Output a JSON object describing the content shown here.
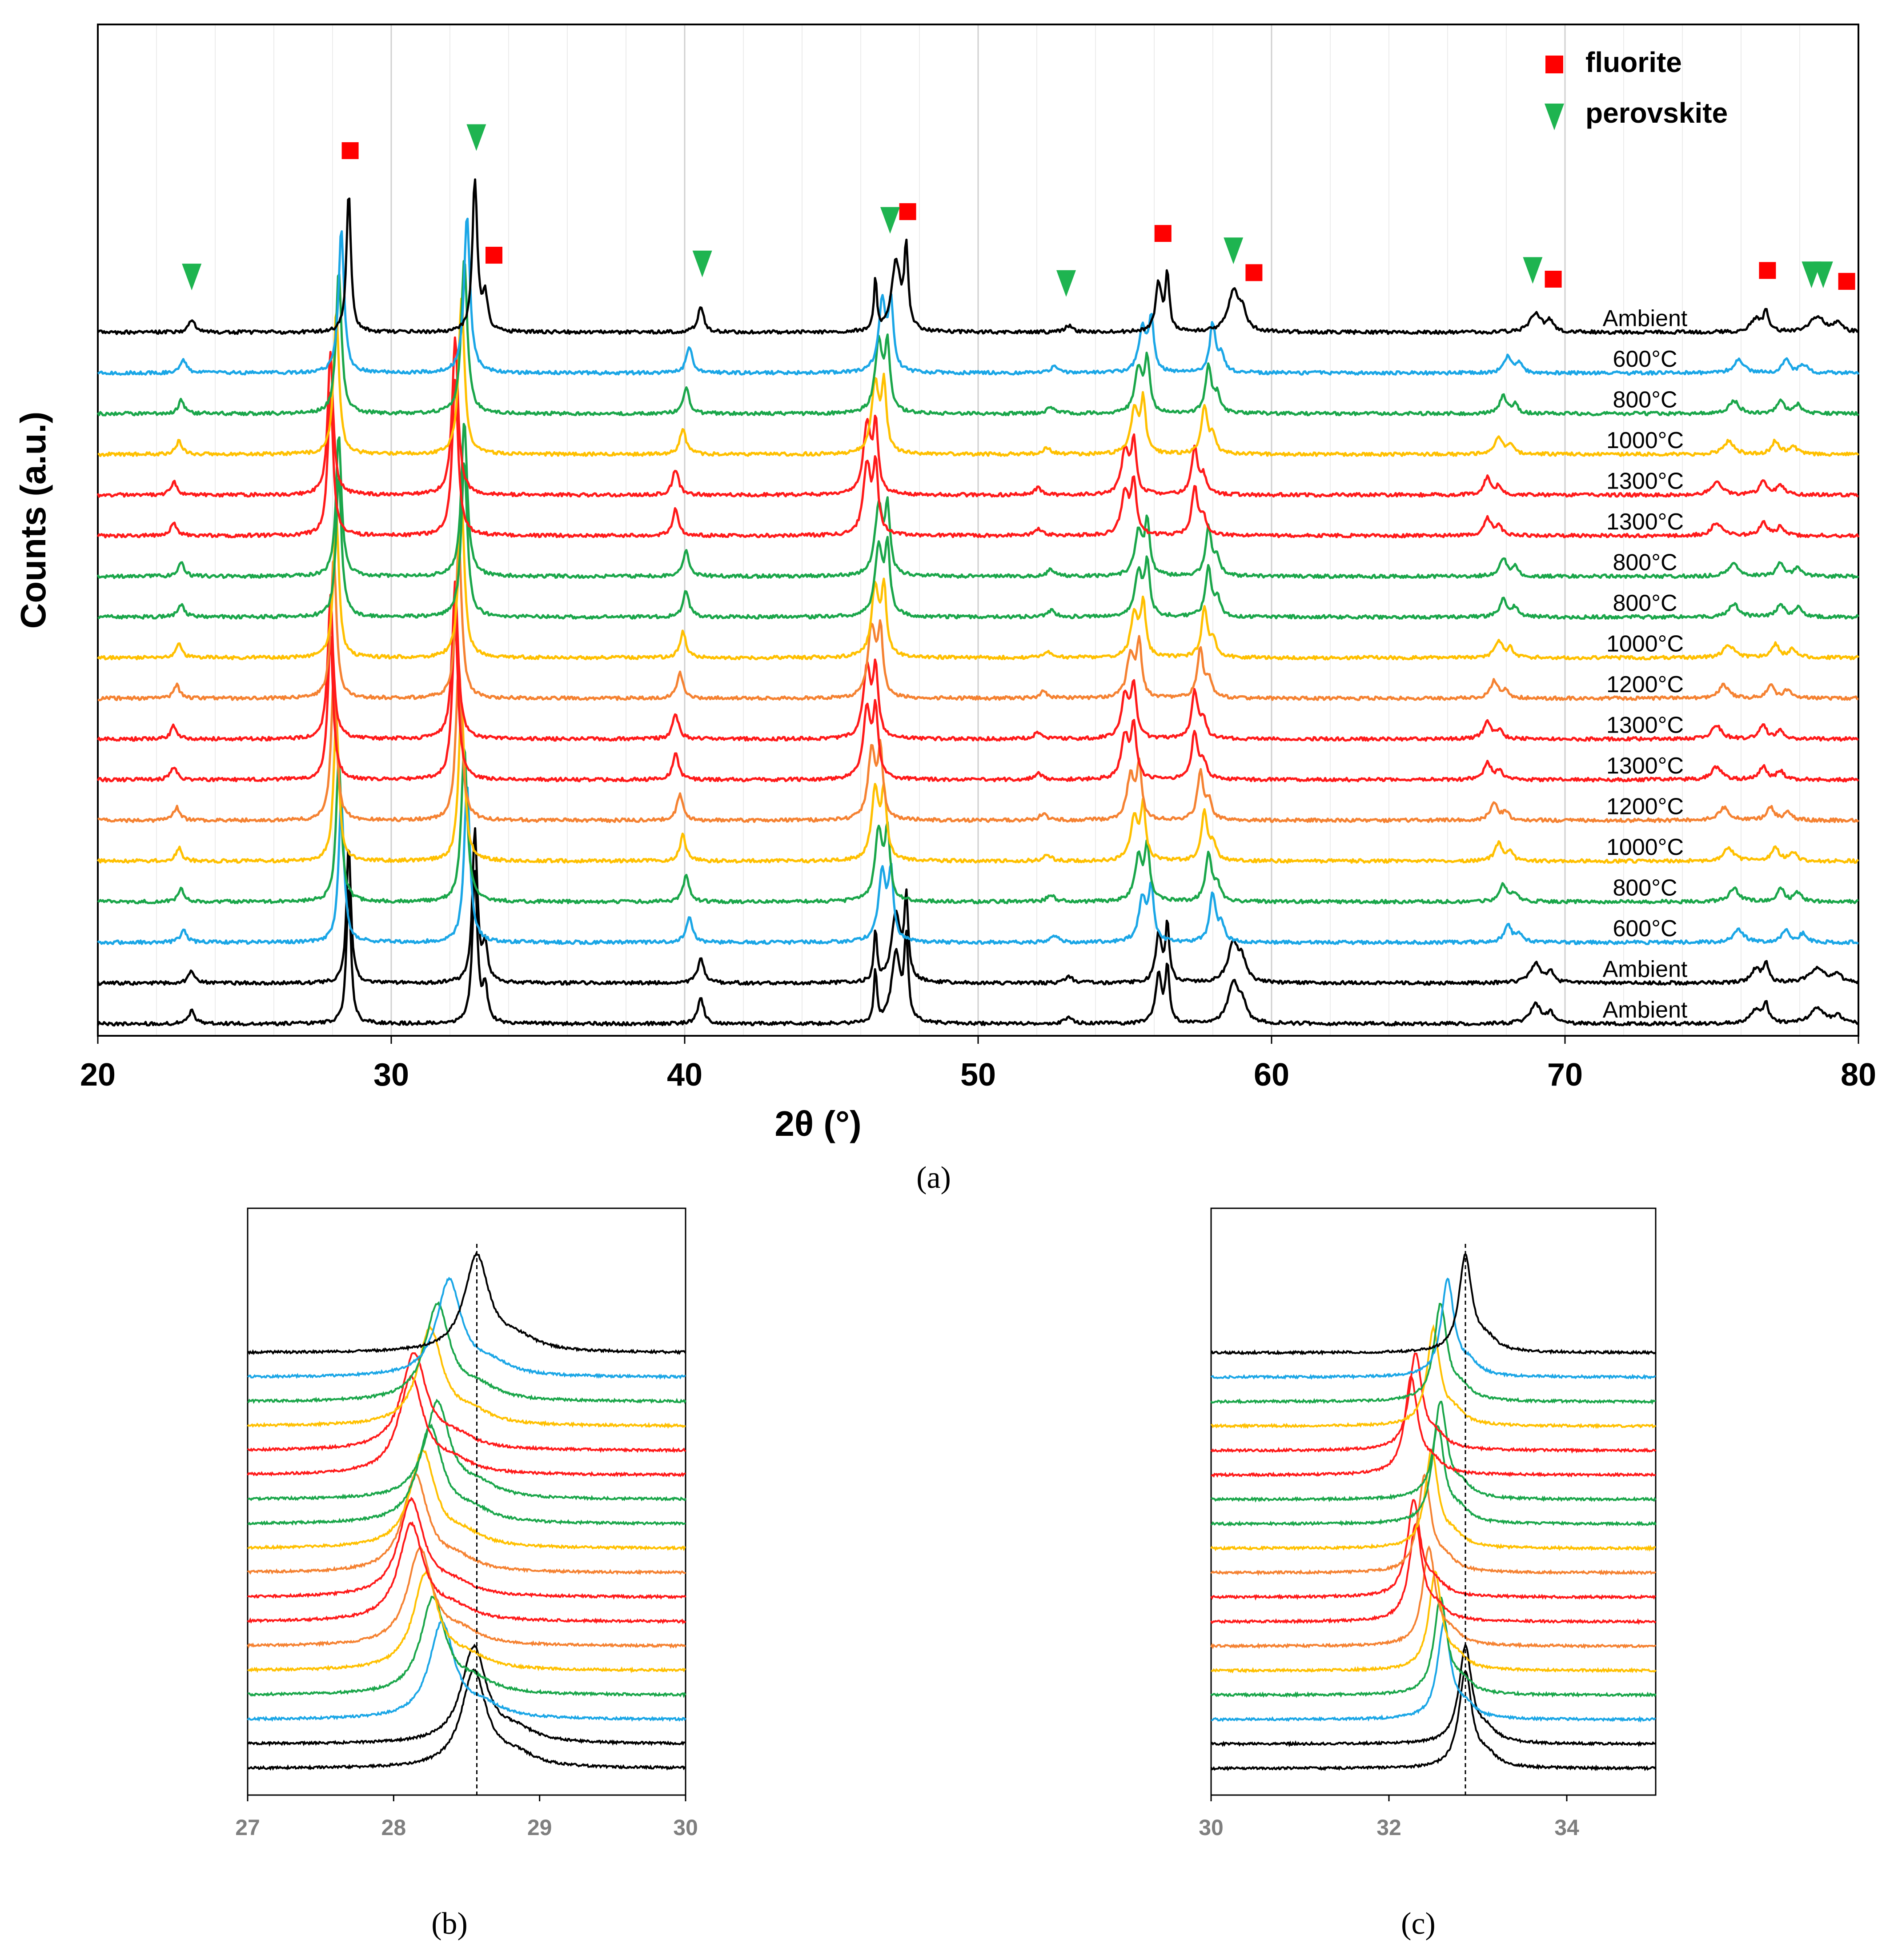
{
  "figure": {
    "captions": {
      "a": "(a)",
      "b": "(b)",
      "c": "(c)"
    }
  },
  "colors": {
    "Ambient": "#000000",
    "600": "#1aa6e6",
    "800": "#1aa64a",
    "1000": "#ffc000",
    "1200": "#f58232",
    "1300": "#ff1a1a",
    "fluorite": "#ff0000",
    "perovskite": "#1eb450",
    "grid": "#d9d9d9",
    "refline": "#000000"
  },
  "chart_data": [
    {
      "id": "a",
      "type": "line",
      "xlabel": "2θ (°)",
      "ylabel": "Counts (a.u.)",
      "xlim": [
        20,
        80
      ],
      "xticks": [
        20,
        30,
        40,
        50,
        60,
        70,
        80
      ],
      "y_units": "stacked offset (a.u.), bottom trace = 0",
      "legend": {
        "placement": "top-right",
        "entries": [
          {
            "label": "fluorite",
            "marker": "square",
            "color": "#ff0000"
          },
          {
            "label": "perovskite",
            "marker": "triangle-down",
            "color": "#1eb450"
          }
        ]
      },
      "markers": {
        "fluorite": [
          28.6,
          33.5,
          47.6,
          56.3,
          59.4,
          69.6,
          76.9,
          79.6
        ],
        "perovskite": [
          23.2,
          32.9,
          40.6,
          47.0,
          53.0,
          58.7,
          68.9,
          78.4,
          78.8
        ]
      },
      "traces": [
        {
          "label": "Ambient",
          "colorKey": "Ambient",
          "scale": 1.0,
          "shift": 0.0,
          "offset": 0
        },
        {
          "label": "Ambient",
          "colorKey": "Ambient",
          "scale": 1.0,
          "shift": 0.0,
          "offset": 1
        },
        {
          "label": "600°C",
          "colorKey": "600",
          "scale": 1.004,
          "shift": 0.2,
          "offset": 2
        },
        {
          "label": "800°C",
          "colorKey": "800",
          "scale": 1.006,
          "shift": 0.3,
          "offset": 3
        },
        {
          "label": "1000°C",
          "colorKey": "1000",
          "scale": 1.008,
          "shift": 0.4,
          "offset": 4
        },
        {
          "label": "1200°C",
          "colorKey": "1200",
          "scale": 1.01,
          "shift": 0.5,
          "offset": 5
        },
        {
          "label": "1300°C",
          "colorKey": "1300",
          "scale": 1.013,
          "shift": 0.6,
          "offset": 6
        },
        {
          "label": "1300°C",
          "colorKey": "1300",
          "scale": 1.013,
          "shift": 0.6,
          "offset": 7
        },
        {
          "label": "1200°C",
          "colorKey": "1200",
          "scale": 1.01,
          "shift": 0.5,
          "offset": 8
        },
        {
          "label": "1000°C",
          "colorKey": "1000",
          "scale": 1.008,
          "shift": 0.4,
          "offset": 9
        },
        {
          "label": "800°C",
          "colorKey": "800",
          "scale": 1.006,
          "shift": 0.3,
          "offset": 10
        },
        {
          "label": "800°C",
          "colorKey": "800",
          "scale": 1.006,
          "shift": 0.3,
          "offset": 11
        },
        {
          "label": "1300°C",
          "colorKey": "1300",
          "scale": 1.013,
          "shift": 0.6,
          "offset": 12
        },
        {
          "label": "1300°C",
          "colorKey": "1300",
          "scale": 1.013,
          "shift": 0.6,
          "offset": 13
        },
        {
          "label": "1000°C",
          "colorKey": "1000",
          "scale": 1.008,
          "shift": 0.4,
          "offset": 14
        },
        {
          "label": "800°C",
          "colorKey": "800",
          "scale": 1.006,
          "shift": 0.3,
          "offset": 15
        },
        {
          "label": "600°C",
          "colorKey": "600",
          "scale": 1.004,
          "shift": 0.2,
          "offset": 16
        },
        {
          "label": "Ambient",
          "colorKey": "Ambient",
          "scale": 1.0,
          "shift": 0.0,
          "offset": 17
        }
      ],
      "peaks_ambient": [
        {
          "pos": 23.2,
          "h": 0.3,
          "w": 0.12
        },
        {
          "pos": 28.55,
          "h": 3.2,
          "w": 0.09
        },
        {
          "pos": 32.85,
          "h": 3.5,
          "w": 0.1
        },
        {
          "pos": 33.2,
          "h": 0.8,
          "w": 0.1
        },
        {
          "pos": 40.55,
          "h": 0.6,
          "w": 0.12
        },
        {
          "pos": 46.5,
          "h": 1.2,
          "w": 0.06
        },
        {
          "pos": 47.2,
          "h": 1.6,
          "w": 0.18
        },
        {
          "pos": 47.55,
          "h": 1.8,
          "w": 0.08
        },
        {
          "pos": 53.1,
          "h": 0.15,
          "w": 0.15
        },
        {
          "pos": 56.15,
          "h": 1.1,
          "w": 0.12
        },
        {
          "pos": 56.45,
          "h": 1.3,
          "w": 0.08
        },
        {
          "pos": 58.7,
          "h": 0.9,
          "w": 0.22
        },
        {
          "pos": 59.0,
          "h": 0.4,
          "w": 0.15
        },
        {
          "pos": 69.0,
          "h": 0.45,
          "w": 0.22
        },
        {
          "pos": 69.5,
          "h": 0.25,
          "w": 0.12
        },
        {
          "pos": 76.5,
          "h": 0.3,
          "w": 0.2
        },
        {
          "pos": 76.85,
          "h": 0.45,
          "w": 0.1
        },
        {
          "pos": 78.6,
          "h": 0.35,
          "w": 0.3
        },
        {
          "pos": 79.3,
          "h": 0.2,
          "w": 0.15
        }
      ],
      "peaks_heated": [
        {
          "pos": 23.0,
          "h": 0.3,
          "w": 0.12
        },
        {
          "pos": 28.4,
          "h": 3.3,
          "w": 0.11
        },
        {
          "pos": 32.7,
          "h": 3.6,
          "w": 0.12
        },
        {
          "pos": 40.3,
          "h": 0.6,
          "w": 0.12
        },
        {
          "pos": 46.9,
          "h": 1.6,
          "w": 0.15
        },
        {
          "pos": 47.2,
          "h": 1.5,
          "w": 0.1
        },
        {
          "pos": 52.8,
          "h": 0.15,
          "w": 0.15
        },
        {
          "pos": 55.8,
          "h": 1.0,
          "w": 0.15
        },
        {
          "pos": 56.1,
          "h": 1.2,
          "w": 0.1
        },
        {
          "pos": 58.2,
          "h": 1.1,
          "w": 0.12
        },
        {
          "pos": 58.5,
          "h": 0.4,
          "w": 0.12
        },
        {
          "pos": 68.3,
          "h": 0.4,
          "w": 0.15
        },
        {
          "pos": 68.7,
          "h": 0.2,
          "w": 0.12
        },
        {
          "pos": 76.2,
          "h": 0.3,
          "w": 0.2
        },
        {
          "pos": 77.8,
          "h": 0.3,
          "w": 0.15
        },
        {
          "pos": 78.4,
          "h": 0.2,
          "w": 0.15
        }
      ]
    },
    {
      "id": "b",
      "type": "line",
      "xlim": [
        27,
        30
      ],
      "xticks": [
        27,
        28,
        29,
        30
      ],
      "reference_x": 28.57,
      "peak_width": 0.13,
      "traces": [
        {
          "colorKey": "Ambient",
          "center": 28.55
        },
        {
          "colorKey": "Ambient",
          "center": 28.55
        },
        {
          "colorKey": "600",
          "center": 28.33
        },
        {
          "colorKey": "800",
          "center": 28.27
        },
        {
          "colorKey": "1000",
          "center": 28.22
        },
        {
          "colorKey": "1200",
          "center": 28.18
        },
        {
          "colorKey": "1300",
          "center": 28.12
        },
        {
          "colorKey": "1300",
          "center": 28.12
        },
        {
          "colorKey": "1200",
          "center": 28.15
        },
        {
          "colorKey": "1000",
          "center": 28.2
        },
        {
          "colorKey": "800",
          "center": 28.25
        },
        {
          "colorKey": "800",
          "center": 28.3
        },
        {
          "colorKey": "1300",
          "center": 28.12
        },
        {
          "colorKey": "1300",
          "center": 28.14
        },
        {
          "colorKey": "1000",
          "center": 28.25
        },
        {
          "colorKey": "800",
          "center": 28.3
        },
        {
          "colorKey": "600",
          "center": 28.38
        },
        {
          "colorKey": "Ambient",
          "center": 28.57
        }
      ]
    },
    {
      "id": "c",
      "type": "line",
      "xlim": [
        30,
        35
      ],
      "xticks": [
        30,
        32,
        34
      ],
      "reference_x": 32.86,
      "peak_width": 0.11,
      "traces": [
        {
          "colorKey": "Ambient",
          "center": 32.86
        },
        {
          "colorKey": "Ambient",
          "center": 32.86
        },
        {
          "colorKey": "600",
          "center": 32.62
        },
        {
          "colorKey": "800",
          "center": 32.58
        },
        {
          "colorKey": "1000",
          "center": 32.52
        },
        {
          "colorKey": "1200",
          "center": 32.45
        },
        {
          "colorKey": "1300",
          "center": 32.3
        },
        {
          "colorKey": "1300",
          "center": 32.28
        },
        {
          "colorKey": "1200",
          "center": 32.4
        },
        {
          "colorKey": "1000",
          "center": 32.48
        },
        {
          "colorKey": "800",
          "center": 32.55
        },
        {
          "colorKey": "800",
          "center": 32.58
        },
        {
          "colorKey": "1300",
          "center": 32.25
        },
        {
          "colorKey": "1300",
          "center": 32.3
        },
        {
          "colorKey": "1000",
          "center": 32.5
        },
        {
          "colorKey": "800",
          "center": 32.58
        },
        {
          "colorKey": "600",
          "center": 32.66
        },
        {
          "colorKey": "Ambient",
          "center": 32.86
        }
      ]
    }
  ]
}
